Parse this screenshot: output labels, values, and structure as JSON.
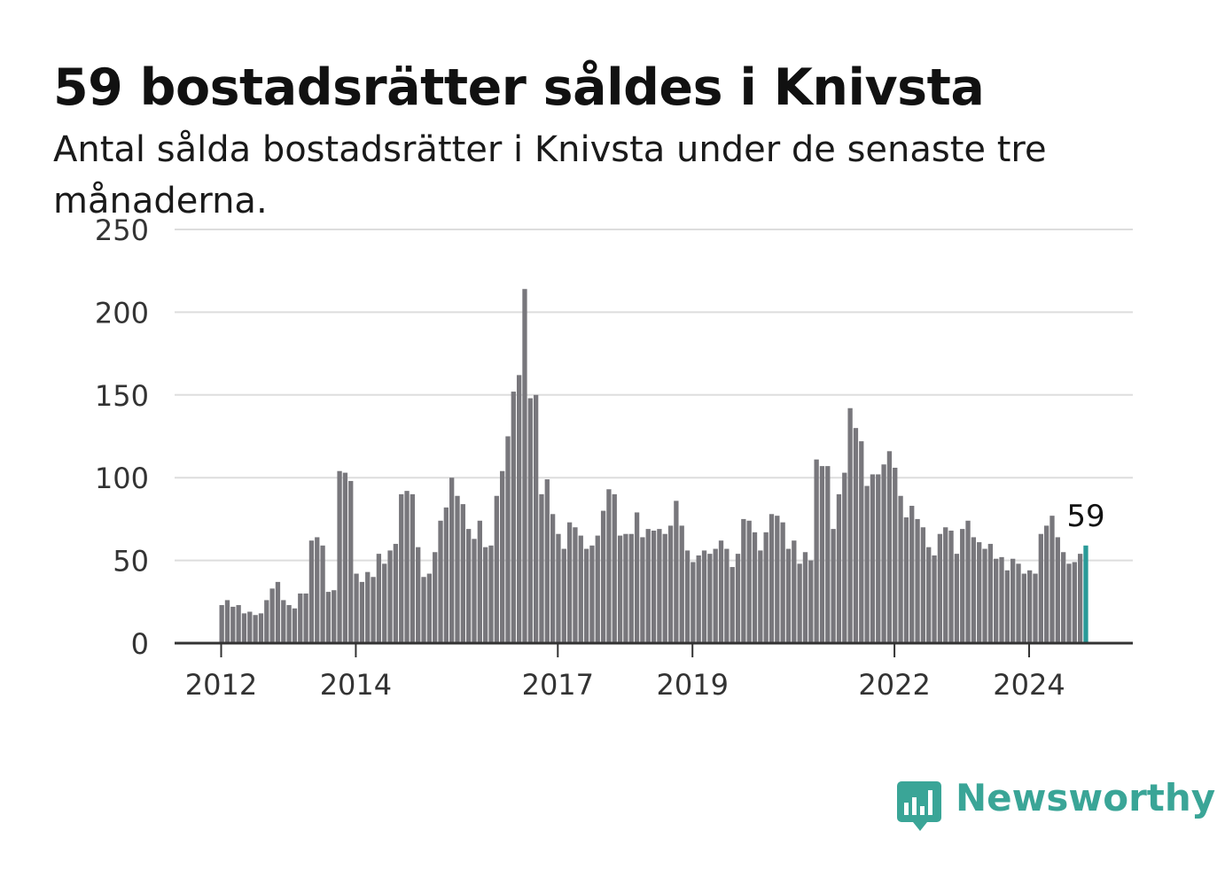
{
  "title": "59 bostadsrätter såldes i Knivsta",
  "subtitle": "Antal sålda bostadsrätter i Knivsta under de senaste tre månaderna.",
  "brand": {
    "name": "Newsworthy",
    "icon": "newsworthy-bar-chart-badge-icon",
    "color": "#3aa597"
  },
  "colors": {
    "bar": "#78777c",
    "highlight": "#2a9a98",
    "grid": "#dddddd",
    "axis": "#333333",
    "text": "#333333"
  },
  "chart_data": {
    "type": "bar",
    "title": "59 bostadsrätter såldes i Knivsta",
    "subtitle": "Antal sålda bostadsrätter i Knivsta under de senaste tre månaderna.",
    "ylim": [
      0,
      250
    ],
    "yticks": [
      0,
      50,
      100,
      150,
      200,
      250
    ],
    "xticks": [
      "2012",
      "2014",
      "2017",
      "2019",
      "2022",
      "2024"
    ],
    "grid": true,
    "start": "2012-01",
    "frequency": "monthly",
    "values": [
      23,
      26,
      22,
      23,
      18,
      19,
      17,
      18,
      26,
      33,
      37,
      26,
      23,
      21,
      30,
      30,
      62,
      64,
      59,
      31,
      32,
      104,
      103,
      98,
      42,
      37,
      43,
      40,
      54,
      48,
      56,
      60,
      90,
      92,
      90,
      58,
      40,
      42,
      55,
      74,
      82,
      100,
      89,
      84,
      69,
      63,
      74,
      58,
      59,
      89,
      104,
      125,
      152,
      162,
      214,
      148,
      150,
      90,
      99,
      78,
      66,
      57,
      73,
      70,
      65,
      57,
      59,
      65,
      80,
      93,
      90,
      65,
      66,
      66,
      79,
      64,
      69,
      68,
      69,
      66,
      71,
      86,
      71,
      56,
      49,
      53,
      56,
      54,
      57,
      62,
      57,
      46,
      54,
      75,
      74,
      67,
      56,
      67,
      78,
      77,
      73,
      57,
      62,
      48,
      55,
      50,
      111,
      107,
      107,
      69,
      90,
      103,
      142,
      130,
      122,
      95,
      102,
      102,
      108,
      116,
      106,
      89,
      76,
      83,
      75,
      70,
      58,
      53,
      66,
      70,
      68,
      54,
      69,
      74,
      64,
      61,
      57,
      60,
      51,
      52,
      44,
      51,
      48,
      42,
      44,
      42,
      66,
      71,
      77,
      64,
      55,
      48,
      49,
      54,
      59
    ],
    "highlight_last": true,
    "annotation": {
      "label": "59",
      "value": 59
    }
  }
}
